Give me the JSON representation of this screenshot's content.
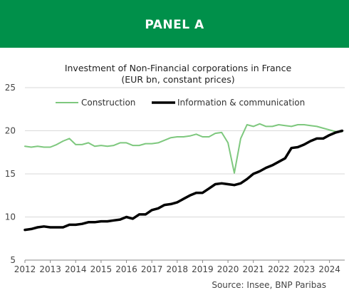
{
  "panel": {
    "title": "PANEL A"
  },
  "chart_data": {
    "type": "line",
    "title": "Investment of Non-Financial corporations in France",
    "subtitle": "(EUR bn, constant prices)",
    "xlabel": "",
    "ylabel": "",
    "ylim": [
      5,
      25
    ],
    "yticks": [
      5,
      10,
      15,
      20,
      25
    ],
    "xlim": [
      2012,
      2024.6
    ],
    "xticks": [
      "2012",
      "2013",
      "2014",
      "2015",
      "2016",
      "2017",
      "2018",
      "2019",
      "2020",
      "2021",
      "2022",
      "2023",
      "2024"
    ],
    "grid": "horizontal",
    "legend_position": "top",
    "source": "Source:  Insee, BNP Paribas",
    "x": [
      2012.0,
      2012.25,
      2012.5,
      2012.75,
      2013.0,
      2013.25,
      2013.5,
      2013.75,
      2014.0,
      2014.25,
      2014.5,
      2014.75,
      2015.0,
      2015.25,
      2015.5,
      2015.75,
      2016.0,
      2016.25,
      2016.5,
      2016.75,
      2017.0,
      2017.25,
      2017.5,
      2017.75,
      2018.0,
      2018.25,
      2018.5,
      2018.75,
      2019.0,
      2019.25,
      2019.5,
      2019.75,
      2020.0,
      2020.25,
      2020.5,
      2020.75,
      2021.0,
      2021.25,
      2021.5,
      2021.75,
      2022.0,
      2022.25,
      2022.5,
      2022.75,
      2023.0,
      2023.25,
      2023.5,
      2023.75,
      2024.0,
      2024.25,
      2024.5
    ],
    "series": [
      {
        "name": "Construction",
        "color": "#7ec87e",
        "values": [
          18.2,
          18.1,
          18.2,
          18.1,
          18.1,
          18.4,
          18.8,
          19.1,
          18.4,
          18.4,
          18.6,
          18.2,
          18.3,
          18.2,
          18.3,
          18.6,
          18.6,
          18.3,
          18.3,
          18.5,
          18.5,
          18.6,
          18.9,
          19.2,
          19.3,
          19.3,
          19.4,
          19.6,
          19.3,
          19.3,
          19.7,
          19.8,
          18.6,
          15.1,
          19.1,
          20.7,
          20.5,
          20.8,
          20.5,
          20.5,
          20.7,
          20.6,
          20.5,
          20.7,
          20.7,
          20.6,
          20.5,
          20.3,
          20.1,
          19.9,
          19.9
        ]
      },
      {
        "name": "Information & communication",
        "color": "#000000",
        "values": [
          8.5,
          8.6,
          8.8,
          8.9,
          8.8,
          8.8,
          8.8,
          9.1,
          9.1,
          9.2,
          9.4,
          9.4,
          9.5,
          9.5,
          9.6,
          9.7,
          10.0,
          9.8,
          10.3,
          10.3,
          10.8,
          11.0,
          11.4,
          11.5,
          11.7,
          12.1,
          12.5,
          12.8,
          12.8,
          13.3,
          13.8,
          13.9,
          13.8,
          13.7,
          13.9,
          14.4,
          15.0,
          15.3,
          15.7,
          16.0,
          16.4,
          16.8,
          18.0,
          18.1,
          18.4,
          18.8,
          19.1,
          19.1,
          19.5,
          19.8,
          20.0
        ]
      }
    ]
  }
}
